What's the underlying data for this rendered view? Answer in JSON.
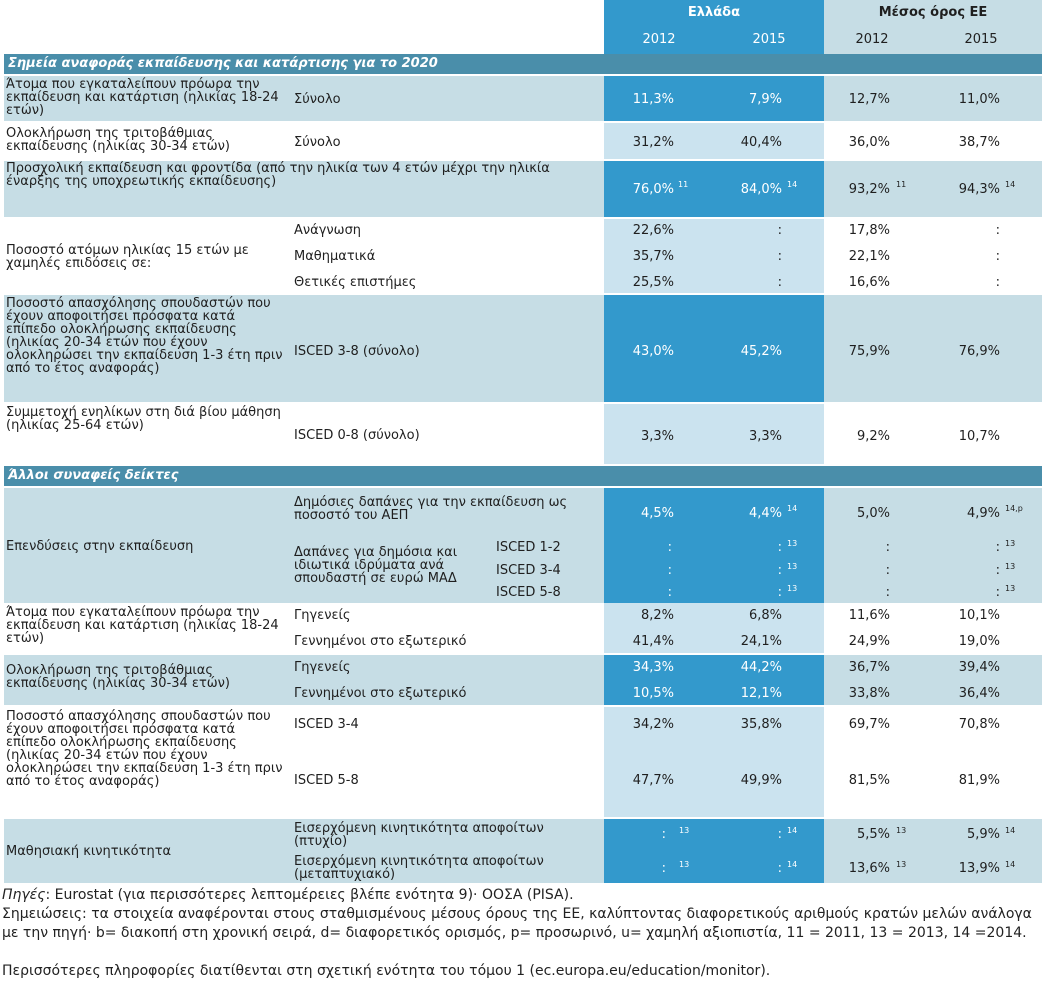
{
  "header": {
    "greece": "Ελλάδα",
    "eu_avg": "Μέσος όρος ΕΕ",
    "years": [
      "2012",
      "2015",
      "2012",
      "2015"
    ]
  },
  "section1": "Σημεία αναφοράς εκπαίδευσης και κατάρτισης για το 2020",
  "section2": "Άλλοι συναφείς δείκτες",
  "rows": {
    "r1": {
      "label": "Άτομα που εγκαταλείπουν πρόωρα την εκπαίδευση και κατάρτιση (ηλικίας 18-24 ετών)",
      "sub": "Σύνολο",
      "v": [
        "11,3%",
        "7,9%",
        "12,7%",
        "11,0%"
      ]
    },
    "r2": {
      "label": "Ολοκλήρωση της τριτοβάθμιας εκπαίδευσης (ηλικίας 30-34 ετών)",
      "sub": "Σύνολο",
      "v": [
        "31,2%",
        "40,4%",
        "36,0%",
        "38,7%"
      ]
    },
    "r3": {
      "label": "Προσχολική εκπαίδευση και φροντίδα (από την ηλικία των 4 ετών μέχρι την ηλικία έναρξης της υποχρεωτικής εκπαίδευσης)",
      "v": [
        "76,0%",
        "84,0%",
        "93,2%",
        "94,3%"
      ],
      "sup": [
        "11",
        "14",
        "11",
        "14"
      ]
    },
    "r4": {
      "label": "Ποσοστό ατόμων ηλικίας 15 ετών με χαμηλές επιδόσεις σε:",
      "subs": [
        {
          "sub": "Ανάγνωση",
          "v": [
            "22,6%",
            ":",
            "17,8%",
            ":"
          ]
        },
        {
          "sub": "Μαθηματικά",
          "v": [
            "35,7%",
            ":",
            "22,1%",
            ":"
          ]
        },
        {
          "sub": "Θετικές επιστήμες",
          "v": [
            "25,5%",
            ":",
            "16,6%",
            ":"
          ]
        }
      ]
    },
    "r5": {
      "label": "Ποσοστό απασχόλησης σπουδαστών που έχουν αποφοιτήσει πρόσφατα κατά επίπεδο ολοκλήρωσης εκπαίδευσης (ηλικίας 20-34 ετών που έχουν ολοκληρώσει την εκπαίδευση 1-3 έτη πριν από το έτος αναφοράς)",
      "sub": "ISCED 3-8 (σύνολο)",
      "v": [
        "43,0%",
        "45,2%",
        "75,9%",
        "76,9%"
      ]
    },
    "r6": {
      "label": "Συμμετοχή ενηλίκων στη διά βίου μάθηση (ηλικίας 25-64 ετών)",
      "sub": "ISCED 0-8 (σύνολο)",
      "v": [
        "3,3%",
        "3,3%",
        "9,2%",
        "10,7%"
      ]
    },
    "r7": {
      "label": "Επενδύσεις στην εκπαίδευση",
      "sub1": "Δημόσιες δαπάνες για την εκπαίδευση ως ποσοστό του ΑΕΠ",
      "v1": [
        "4,5%",
        "4,4%",
        "5,0%",
        "4,9%"
      ],
      "sup1": [
        "",
        "14",
        "",
        "14,p"
      ],
      "sub2": "Δαπάνες για δημόσια και ιδιωτικά ιδρύματα ανά σπουδαστή σε ευρώ ΜΑΔ",
      "isced": [
        {
          "lvl": "ISCED 1-2",
          "v": [
            ":",
            ":",
            ":",
            ":"
          ],
          "sup": [
            "",
            "13",
            "",
            "13"
          ]
        },
        {
          "lvl": "ISCED 3-4",
          "v": [
            ":",
            ":",
            ":",
            ":"
          ],
          "sup": [
            "",
            "13",
            "",
            "13"
          ]
        },
        {
          "lvl": "ISCED 5-8",
          "v": [
            ":",
            ":",
            ":",
            ":"
          ],
          "sup": [
            "",
            "13",
            "",
            "13"
          ]
        }
      ]
    },
    "r8": {
      "label": "Άτομα που εγκαταλείπουν πρόωρα την εκπαίδευση και κατάρτιση (ηλικίας 18-24 ετών)",
      "subs": [
        {
          "sub": "Γηγενείς",
          "v": [
            "8,2%",
            "6,8%",
            "11,6%",
            "10,1%"
          ]
        },
        {
          "sub": "Γεννημένοι στο εξωτερικό",
          "v": [
            "41,4%",
            "24,1%",
            "24,9%",
            "19,0%"
          ]
        }
      ]
    },
    "r9": {
      "label": "Ολοκλήρωση της τριτοβάθμιας εκπαίδευσης (ηλικίας 30-34 ετών)",
      "subs": [
        {
          "sub": "Γηγενείς",
          "v": [
            "34,3%",
            "44,2%",
            "36,7%",
            "39,4%"
          ]
        },
        {
          "sub": "Γεννημένοι στο εξωτερικό",
          "v": [
            "10,5%",
            "12,1%",
            "33,8%",
            "36,4%"
          ]
        }
      ]
    },
    "r10": {
      "label": "Ποσοστό απασχόλησης σπουδαστών που έχουν αποφοιτήσει πρόσφατα κατά επίπεδο ολοκλήρωσης εκπαίδευσης (ηλικίας 20-34 ετών που έχουν ολοκληρώσει την εκπαίδευση 1-3 έτη πριν από το έτος αναφοράς)",
      "subs": [
        {
          "sub": "ISCED 3-4",
          "v": [
            "34,2%",
            "35,8%",
            "69,7%",
            "70,8%"
          ]
        },
        {
          "sub": "ISCED 5-8",
          "v": [
            "47,7%",
            "49,9%",
            "81,5%",
            "81,9%"
          ]
        }
      ]
    },
    "r11": {
      "label": "Μαθησιακή κινητικότητα",
      "subs": [
        {
          "sub": "Εισερχόμενη κινητικότητα αποφοίτων (πτυχίο)",
          "v": [
            ":",
            ":",
            "5,5%",
            "5,9%"
          ],
          "sup": [
            "13",
            "14",
            "13",
            "14"
          ]
        },
        {
          "sub": "Εισερχόμενη κινητικότητα αποφοίτων (μεταπτυχιακό)",
          "v": [
            ":",
            ":",
            "13,6%",
            "13,9%"
          ],
          "sup": [
            "13",
            "14",
            "13",
            "14"
          ]
        }
      ]
    }
  },
  "footer": {
    "sources_label": "Πηγές",
    "sources": ": Eurostat (για περισσότερες λεπτομέρειες βλέπε ενότητα 9)· ΟΟΣΑ (PISA).",
    "notes": "Σημειώσεις: τα στοιχεία αναφέρονται στους σταθμισμένους μέσους όρους της ΕΕ, καλύπτοντας διαφορετικούς αριθμούς κρατών μελών ανάλογα με την πηγή· b= διακοπή στη χρονική σειρά, d= διαφορετικός ορισμός, p= προσωρινό, u= χαμηλή αξιοπιστία, 11 = 2011, 13 = 2013, 14 =2014.",
    "more": "Περισσότερες πληροφορίες διατίθενται στη σχετική ενότητα του τόμου 1 (ec.europa.eu/education/monitor)."
  }
}
